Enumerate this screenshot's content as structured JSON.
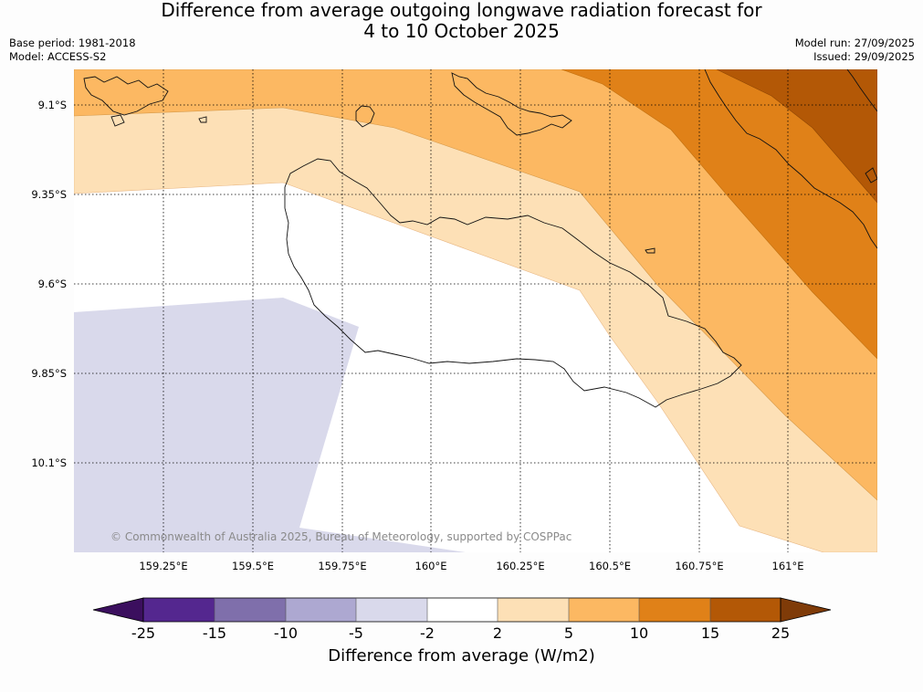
{
  "header": {
    "title_line1": "Difference from average outgoing longwave radiation forecast for",
    "title_line2": "4 to 10 October 2025",
    "base_period": "Base period: 1981-2018",
    "model": "Model: ACCESS-S2",
    "model_run": "Model run: 27/09/2025",
    "issued": "Issued: 29/09/2025"
  },
  "map": {
    "lat_labels": [
      "9.1°S",
      "9.35°S",
      "9.6°S",
      "9.85°S",
      "10.1°S"
    ],
    "lon_labels": [
      "159.25°E",
      "159.5°E",
      "159.75°E",
      "160°E",
      "160.25°E",
      "160.5°E",
      "160.75°E",
      "161°E"
    ],
    "copyright": "© Commonwealth of Australia 2025, Bureau of Meteorology, supported by COSPPac"
  },
  "colorbar": {
    "title": "Difference from average (W/m2)",
    "ticks": [
      "-25",
      "-15",
      "-10",
      "-5",
      "-2",
      "2",
      "5",
      "10",
      "15",
      "25"
    ],
    "colors": [
      "#3b0f5e",
      "#54278f",
      "#7f6fab",
      "#ada8d1",
      "#d9d9eb",
      "#ffffff",
      "#fde0b6",
      "#fcb862",
      "#e08118",
      "#b35806",
      "#7f3b08"
    ]
  }
}
